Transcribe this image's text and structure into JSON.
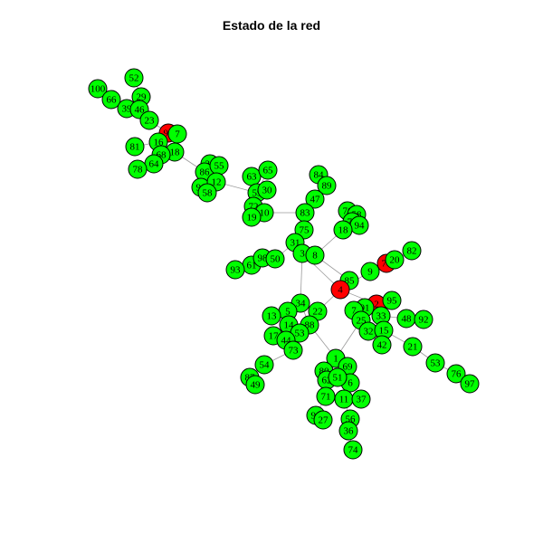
{
  "title": "Estado de la red",
  "colors": {
    "susceptible": "#00ff00",
    "infected": "#ff0000",
    "stroke": "#000000",
    "edge": "#9a9a9a"
  },
  "nodes": [
    {
      "id": "52",
      "state": "susceptible"
    },
    {
      "id": "100",
      "state": "susceptible"
    },
    {
      "id": "66",
      "state": "susceptible"
    },
    {
      "id": "29",
      "state": "susceptible"
    },
    {
      "id": "39",
      "state": "susceptible"
    },
    {
      "id": "46",
      "state": "susceptible"
    },
    {
      "id": "23",
      "state": "susceptible"
    },
    {
      "id": "99",
      "state": "infected"
    },
    {
      "id": "7",
      "state": "susceptible"
    },
    {
      "id": "81",
      "state": "susceptible"
    },
    {
      "id": "16",
      "state": "susceptible"
    },
    {
      "id": "18",
      "state": "susceptible"
    },
    {
      "id": "68",
      "state": "susceptible"
    },
    {
      "id": "64",
      "state": "susceptible"
    },
    {
      "id": "78",
      "state": "susceptible"
    },
    {
      "id": "26",
      "state": "susceptible"
    },
    {
      "id": "86",
      "state": "susceptible"
    },
    {
      "id": "55",
      "state": "susceptible"
    },
    {
      "id": "96",
      "state": "susceptible"
    },
    {
      "id": "12",
      "state": "susceptible"
    },
    {
      "id": "58",
      "state": "susceptible"
    },
    {
      "id": "63",
      "state": "susceptible"
    },
    {
      "id": "65",
      "state": "susceptible"
    },
    {
      "id": "59",
      "state": "susceptible"
    },
    {
      "id": "30",
      "state": "susceptible"
    },
    {
      "id": "72",
      "state": "susceptible"
    },
    {
      "id": "10",
      "state": "susceptible"
    },
    {
      "id": "19",
      "state": "susceptible"
    },
    {
      "id": "84",
      "state": "susceptible"
    },
    {
      "id": "89",
      "state": "susceptible"
    },
    {
      "id": "47",
      "state": "susceptible"
    },
    {
      "id": "83",
      "state": "susceptible"
    },
    {
      "id": "75",
      "state": "susceptible"
    },
    {
      "id": "31",
      "state": "susceptible"
    },
    {
      "id": "3",
      "state": "susceptible"
    },
    {
      "id": "8",
      "state": "susceptible"
    },
    {
      "id": "61",
      "state": "susceptible"
    },
    {
      "id": "98",
      "state": "susceptible"
    },
    {
      "id": "50",
      "state": "susceptible"
    },
    {
      "id": "93",
      "state": "susceptible"
    },
    {
      "id": "76",
      "state": "susceptible"
    },
    {
      "id": "58b",
      "label": "58",
      "state": "susceptible"
    },
    {
      "id": "79",
      "state": "susceptible"
    },
    {
      "id": "94",
      "state": "susceptible"
    },
    {
      "id": "17b",
      "label": "18",
      "state": "susceptible"
    },
    {
      "id": "82",
      "state": "susceptible"
    },
    {
      "id": "70",
      "state": "infected"
    },
    {
      "id": "20",
      "state": "susceptible"
    },
    {
      "id": "9",
      "state": "susceptible"
    },
    {
      "id": "85",
      "state": "susceptible"
    },
    {
      "id": "4",
      "state": "infected"
    },
    {
      "id": "34",
      "state": "susceptible"
    },
    {
      "id": "22",
      "state": "susceptible"
    },
    {
      "id": "5",
      "state": "susceptible"
    },
    {
      "id": "13",
      "state": "susceptible"
    },
    {
      "id": "14",
      "state": "susceptible"
    },
    {
      "id": "88",
      "state": "susceptible"
    },
    {
      "id": "53",
      "state": "susceptible"
    },
    {
      "id": "17",
      "state": "susceptible"
    },
    {
      "id": "44",
      "state": "susceptible"
    },
    {
      "id": "73",
      "state": "susceptible"
    },
    {
      "id": "2",
      "state": "infected"
    },
    {
      "id": "91",
      "state": "susceptible"
    },
    {
      "id": "95",
      "state": "susceptible"
    },
    {
      "id": "7b",
      "label": "7",
      "state": "susceptible"
    },
    {
      "id": "25",
      "state": "susceptible"
    },
    {
      "id": "33",
      "state": "susceptible"
    },
    {
      "id": "48",
      "state": "susceptible"
    },
    {
      "id": "92",
      "state": "susceptible"
    },
    {
      "id": "32",
      "state": "susceptible"
    },
    {
      "id": "15",
      "state": "susceptible"
    },
    {
      "id": "42",
      "state": "susceptible"
    },
    {
      "id": "21",
      "state": "susceptible"
    },
    {
      "id": "53b",
      "label": "53",
      "state": "susceptible"
    },
    {
      "id": "76b",
      "label": "76",
      "state": "susceptible"
    },
    {
      "id": "97",
      "state": "susceptible"
    },
    {
      "id": "54",
      "state": "susceptible"
    },
    {
      "id": "87",
      "state": "susceptible"
    },
    {
      "id": "49",
      "state": "susceptible"
    },
    {
      "id": "1",
      "state": "susceptible"
    },
    {
      "id": "69",
      "state": "susceptible"
    },
    {
      "id": "80",
      "state": "susceptible"
    },
    {
      "id": "62",
      "state": "susceptible"
    },
    {
      "id": "6",
      "state": "susceptible"
    },
    {
      "id": "51",
      "state": "susceptible"
    },
    {
      "id": "71",
      "state": "susceptible"
    },
    {
      "id": "11",
      "state": "susceptible"
    },
    {
      "id": "37",
      "state": "susceptible"
    },
    {
      "id": "90",
      "state": "susceptible"
    },
    {
      "id": "27",
      "state": "susceptible"
    },
    {
      "id": "56",
      "state": "susceptible"
    },
    {
      "id": "36",
      "state": "susceptible"
    },
    {
      "id": "74",
      "state": "susceptible"
    }
  ]
}
